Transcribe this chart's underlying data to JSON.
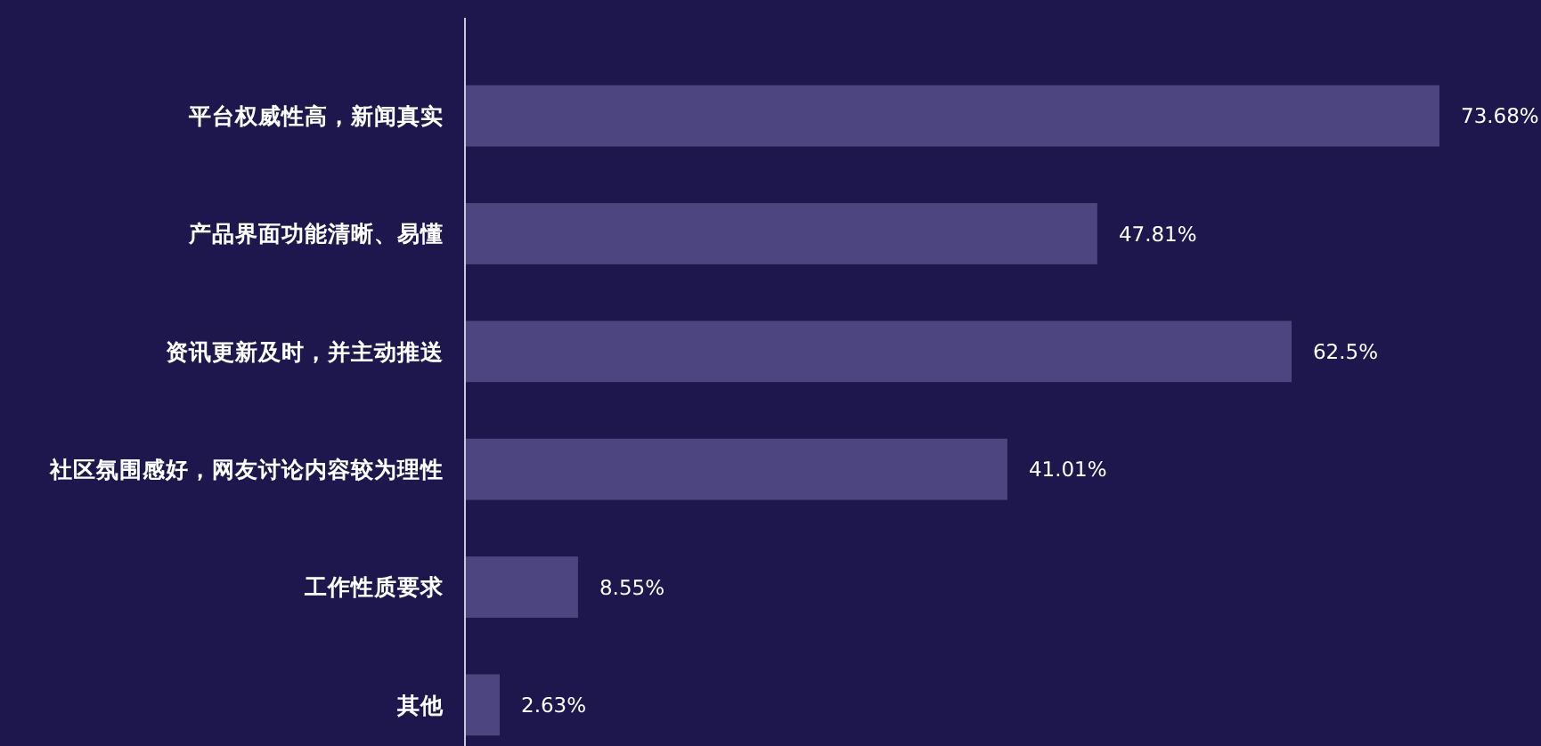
{
  "chart_data": {
    "type": "bar",
    "orientation": "horizontal",
    "categories": [
      "平台权威性高，新闻真实",
      "产品界面功能清晰、易懂",
      "资讯更新及时，并主动推送",
      "社区氛围感好，网友讨论内容较为理性",
      "工作性质要求",
      "其他"
    ],
    "values": [
      73.68,
      47.81,
      62.5,
      41.01,
      8.55,
      2.63
    ],
    "value_labels": [
      "73.68%",
      "47.81%",
      "62.5%",
      "41.01%",
      "8.55%",
      "2.63%"
    ],
    "color": "#4d457f"
  }
}
